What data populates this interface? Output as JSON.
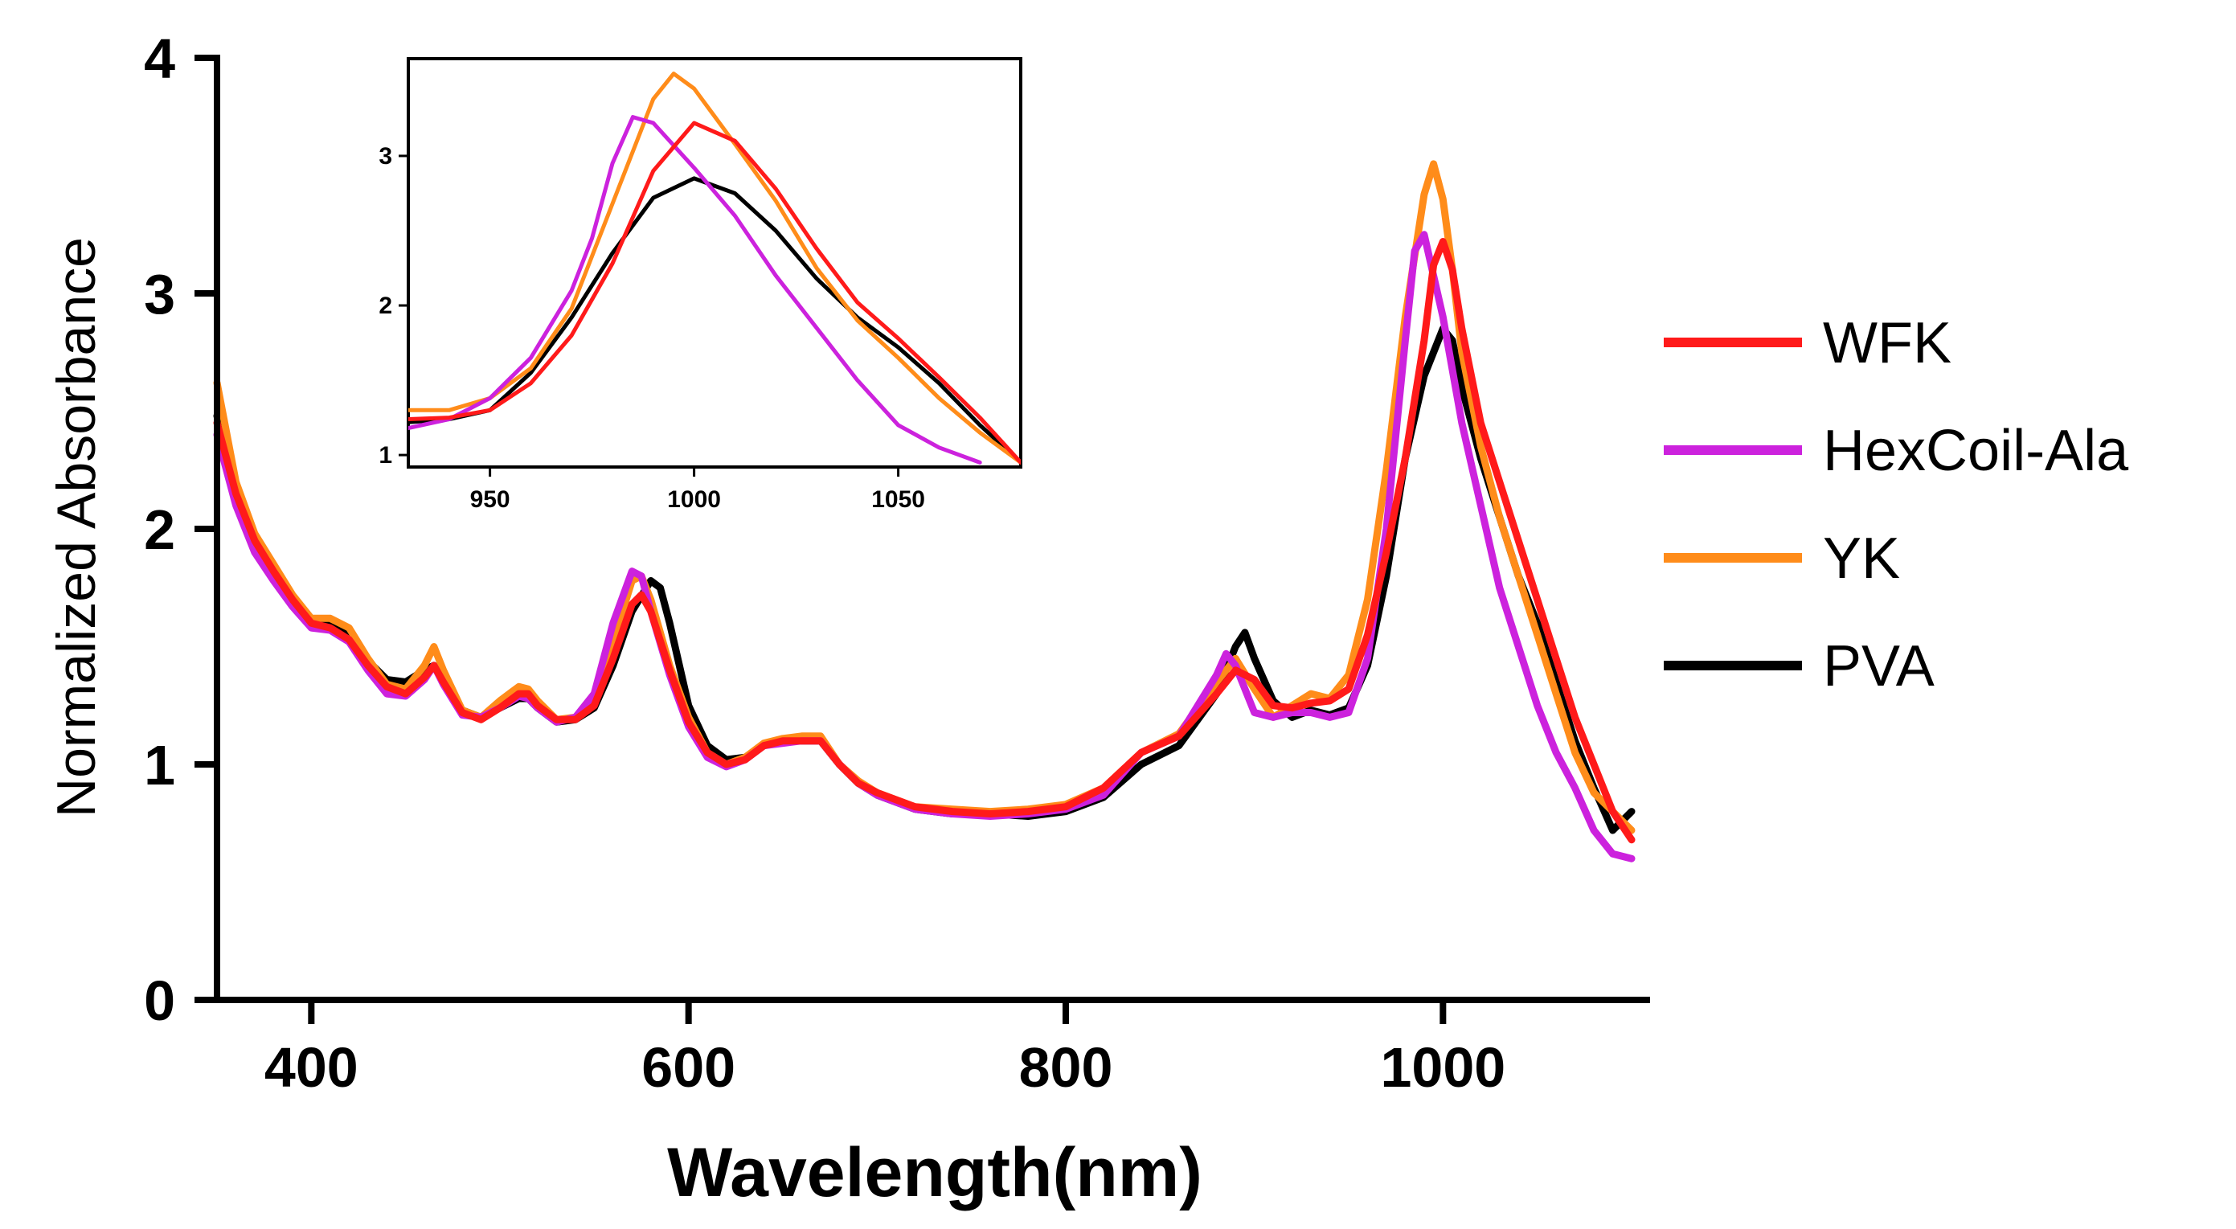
{
  "chart_data": [
    {
      "type": "line",
      "title": "",
      "xlabel": "Wavelength(nm)",
      "ylabel": "Normalized Absorbance",
      "xlim": [
        350,
        1100
      ],
      "ylim": [
        0,
        4
      ],
      "xticks": [
        400,
        600,
        800,
        1000
      ],
      "yticks": [
        0,
        1,
        2,
        3,
        4
      ],
      "grid": false,
      "legend_position": "right",
      "series": [
        {
          "name": "WFK",
          "color": "#ff1a1a",
          "x": [
            350,
            360,
            370,
            380,
            390,
            400,
            410,
            420,
            430,
            440,
            450,
            460,
            465,
            470,
            480,
            490,
            500,
            510,
            515,
            520,
            530,
            540,
            550,
            560,
            570,
            575,
            580,
            590,
            600,
            610,
            620,
            630,
            640,
            650,
            660,
            670,
            680,
            690,
            700,
            720,
            740,
            760,
            780,
            800,
            820,
            840,
            860,
            880,
            890,
            900,
            910,
            920,
            930,
            940,
            950,
            960,
            970,
            980,
            990,
            995,
            1000,
            1005,
            1010,
            1020,
            1030,
            1040,
            1050,
            1060,
            1070,
            1080,
            1090,
            1100
          ],
          "y": [
            2.45,
            2.15,
            1.95,
            1.82,
            1.7,
            1.6,
            1.58,
            1.53,
            1.42,
            1.33,
            1.3,
            1.37,
            1.42,
            1.35,
            1.22,
            1.19,
            1.24,
            1.3,
            1.3,
            1.25,
            1.19,
            1.19,
            1.25,
            1.45,
            1.68,
            1.72,
            1.65,
            1.4,
            1.18,
            1.05,
            1.0,
            1.02,
            1.08,
            1.1,
            1.1,
            1.1,
            1.0,
            0.92,
            0.88,
            0.82,
            0.8,
            0.79,
            0.8,
            0.82,
            0.9,
            1.05,
            1.12,
            1.3,
            1.4,
            1.36,
            1.25,
            1.24,
            1.26,
            1.27,
            1.32,
            1.55,
            1.9,
            2.3,
            2.8,
            3.12,
            3.22,
            3.1,
            2.85,
            2.45,
            2.2,
            1.95,
            1.7,
            1.45,
            1.2,
            1.0,
            0.8,
            0.68
          ]
        },
        {
          "name": "HexCoil-Ala",
          "color": "#cc22dd",
          "x": [
            350,
            360,
            370,
            380,
            390,
            400,
            410,
            420,
            430,
            440,
            450,
            460,
            465,
            470,
            480,
            490,
            500,
            510,
            515,
            520,
            530,
            540,
            550,
            560,
            570,
            575,
            580,
            590,
            600,
            610,
            620,
            630,
            640,
            650,
            660,
            670,
            680,
            690,
            700,
            720,
            740,
            760,
            780,
            800,
            820,
            840,
            860,
            880,
            885,
            890,
            900,
            910,
            920,
            930,
            940,
            950,
            960,
            970,
            980,
            985,
            990,
            1000,
            1010,
            1020,
            1030,
            1040,
            1050,
            1060,
            1070,
            1080,
            1090,
            1100
          ],
          "y": [
            2.4,
            2.1,
            1.9,
            1.78,
            1.67,
            1.58,
            1.57,
            1.52,
            1.4,
            1.3,
            1.29,
            1.36,
            1.42,
            1.34,
            1.21,
            1.2,
            1.24,
            1.29,
            1.28,
            1.24,
            1.18,
            1.2,
            1.3,
            1.6,
            1.82,
            1.8,
            1.65,
            1.38,
            1.16,
            1.03,
            0.99,
            1.02,
            1.08,
            1.09,
            1.1,
            1.1,
            1.0,
            0.92,
            0.87,
            0.81,
            0.79,
            0.78,
            0.79,
            0.81,
            0.87,
            1.05,
            1.12,
            1.38,
            1.47,
            1.42,
            1.22,
            1.2,
            1.22,
            1.22,
            1.2,
            1.22,
            1.45,
            2.0,
            2.8,
            3.18,
            3.25,
            2.9,
            2.45,
            2.1,
            1.75,
            1.5,
            1.25,
            1.05,
            0.9,
            0.72,
            0.62,
            0.6
          ]
        },
        {
          "name": "YK",
          "color": "#ff8c1a",
          "x": [
            350,
            360,
            370,
            380,
            390,
            400,
            410,
            420,
            430,
            440,
            450,
            460,
            465,
            470,
            480,
            490,
            500,
            510,
            515,
            520,
            530,
            540,
            550,
            560,
            570,
            575,
            580,
            590,
            600,
            610,
            620,
            630,
            640,
            650,
            660,
            670,
            680,
            690,
            700,
            720,
            740,
            760,
            780,
            800,
            820,
            840,
            860,
            880,
            890,
            900,
            910,
            920,
            930,
            940,
            950,
            960,
            970,
            980,
            990,
            995,
            1000,
            1005,
            1010,
            1020,
            1030,
            1040,
            1050,
            1060,
            1070,
            1080,
            1090,
            1100
          ],
          "y": [
            2.62,
            2.2,
            1.98,
            1.85,
            1.72,
            1.62,
            1.62,
            1.58,
            1.45,
            1.34,
            1.32,
            1.42,
            1.5,
            1.4,
            1.23,
            1.2,
            1.27,
            1.33,
            1.32,
            1.27,
            1.19,
            1.2,
            1.28,
            1.52,
            1.78,
            1.8,
            1.7,
            1.42,
            1.2,
            1.05,
            1.0,
            1.03,
            1.09,
            1.11,
            1.12,
            1.12,
            1.0,
            0.93,
            0.88,
            0.82,
            0.81,
            0.8,
            0.81,
            0.83,
            0.9,
            1.05,
            1.13,
            1.35,
            1.45,
            1.32,
            1.2,
            1.25,
            1.3,
            1.28,
            1.38,
            1.7,
            2.25,
            2.9,
            3.42,
            3.55,
            3.4,
            3.1,
            2.75,
            2.35,
            2.05,
            1.8,
            1.55,
            1.3,
            1.05,
            0.88,
            0.8,
            0.72
          ]
        },
        {
          "name": "PVA",
          "color": "#000000",
          "x": [
            350,
            360,
            370,
            380,
            390,
            400,
            410,
            420,
            430,
            440,
            450,
            460,
            465,
            470,
            480,
            490,
            500,
            510,
            515,
            520,
            530,
            540,
            550,
            560,
            570,
            580,
            585,
            590,
            600,
            610,
            620,
            630,
            640,
            650,
            660,
            670,
            680,
            690,
            700,
            720,
            740,
            760,
            780,
            800,
            820,
            840,
            860,
            880,
            890,
            895,
            900,
            910,
            920,
            930,
            940,
            950,
            960,
            970,
            980,
            990,
            1000,
            1005,
            1010,
            1020,
            1030,
            1040,
            1050,
            1060,
            1070,
            1080,
            1090,
            1100
          ],
          "y": [
            2.48,
            2.15,
            1.95,
            1.82,
            1.7,
            1.6,
            1.6,
            1.55,
            1.44,
            1.36,
            1.35,
            1.4,
            1.42,
            1.36,
            1.23,
            1.2,
            1.24,
            1.28,
            1.28,
            1.24,
            1.18,
            1.19,
            1.24,
            1.42,
            1.65,
            1.78,
            1.75,
            1.6,
            1.25,
            1.08,
            1.02,
            1.03,
            1.08,
            1.1,
            1.1,
            1.1,
            1.0,
            0.92,
            0.87,
            0.81,
            0.79,
            0.79,
            0.78,
            0.8,
            0.86,
            1.0,
            1.08,
            1.3,
            1.5,
            1.56,
            1.45,
            1.27,
            1.2,
            1.23,
            1.21,
            1.24,
            1.42,
            1.8,
            2.3,
            2.65,
            2.85,
            2.8,
            2.6,
            2.3,
            2.05,
            1.8,
            1.6,
            1.35,
            1.1,
            0.9,
            0.72,
            0.8
          ]
        }
      ]
    },
    {
      "type": "line",
      "title": "",
      "xlabel": "",
      "ylabel": "",
      "xlim": [
        930,
        1080
      ],
      "ylim": [
        0.92,
        3.65
      ],
      "xticks": [
        950,
        1000,
        1050
      ],
      "yticks": [
        1,
        2,
        3
      ],
      "grid": false,
      "series": [
        {
          "color": "#ff1a1a",
          "x": [
            930,
            940,
            950,
            960,
            970,
            980,
            990,
            1000,
            1010,
            1020,
            1030,
            1040,
            1050,
            1060,
            1070,
            1080
          ],
          "y": [
            1.24,
            1.25,
            1.3,
            1.48,
            1.8,
            2.28,
            2.9,
            3.22,
            3.1,
            2.78,
            2.38,
            2.02,
            1.78,
            1.52,
            1.25,
            0.95
          ]
        },
        {
          "color": "#cc22dd",
          "x": [
            930,
            940,
            950,
            960,
            970,
            975,
            980,
            985,
            990,
            1000,
            1010,
            1020,
            1030,
            1040,
            1050,
            1060,
            1070
          ],
          "y": [
            1.18,
            1.24,
            1.38,
            1.65,
            2.1,
            2.45,
            2.95,
            3.26,
            3.22,
            2.92,
            2.6,
            2.2,
            1.85,
            1.5,
            1.2,
            1.05,
            0.95
          ]
        },
        {
          "color": "#ff8c1a",
          "x": [
            930,
            940,
            950,
            960,
            970,
            980,
            990,
            995,
            1000,
            1010,
            1020,
            1030,
            1040,
            1050,
            1060,
            1070,
            1080
          ],
          "y": [
            1.3,
            1.3,
            1.38,
            1.58,
            1.98,
            2.68,
            3.38,
            3.55,
            3.45,
            3.08,
            2.7,
            2.25,
            1.9,
            1.65,
            1.38,
            1.15,
            0.95
          ]
        },
        {
          "color": "#000000",
          "x": [
            930,
            940,
            950,
            960,
            970,
            980,
            990,
            1000,
            1010,
            1020,
            1030,
            1040,
            1050,
            1060,
            1070,
            1080
          ],
          "y": [
            1.22,
            1.24,
            1.3,
            1.55,
            1.92,
            2.35,
            2.72,
            2.85,
            2.75,
            2.5,
            2.18,
            1.92,
            1.72,
            1.48,
            1.2,
            0.95
          ]
        }
      ]
    }
  ]
}
